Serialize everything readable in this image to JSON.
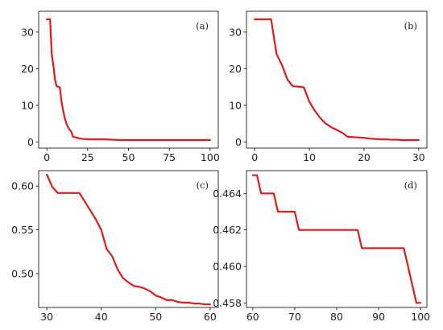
{
  "chart_data": [
    {
      "type": "line",
      "label": "(a)",
      "xlim": [
        -5,
        105
      ],
      "ylim": [
        -1.7,
        35.7
      ],
      "xticks": [
        0,
        25,
        50,
        75,
        100
      ],
      "yticks": [
        0,
        10,
        20,
        30
      ],
      "color": "#e31a1c",
      "series": [
        {
          "x": [
            0,
            1,
            2,
            3,
            4,
            5,
            6,
            7,
            8,
            9,
            10,
            11,
            12,
            13,
            14,
            15,
            16,
            17,
            18,
            19,
            20,
            25,
            30,
            35,
            40,
            45,
            50,
            60,
            70,
            80,
            90,
            100
          ],
          "y": [
            33.5,
            33.5,
            33.5,
            24,
            21,
            17,
            15.2,
            15.1,
            14.9,
            11,
            8.5,
            6.5,
            5,
            4,
            3.3,
            2.8,
            1.4,
            1.3,
            1.2,
            1.1,
            0.9,
            0.7,
            0.7,
            0.7,
            0.6,
            0.5,
            0.5,
            0.5,
            0.5,
            0.5,
            0.5,
            0.5
          ]
        }
      ]
    },
    {
      "type": "line",
      "label": "(b)",
      "xlim": [
        -1.5,
        31.5
      ],
      "ylim": [
        -1.7,
        35.7
      ],
      "xticks": [
        0,
        10,
        20,
        30
      ],
      "yticks": [
        0,
        10,
        20,
        30
      ],
      "color": "#e31a1c",
      "series": [
        {
          "x": [
            0,
            1,
            2,
            3,
            4,
            5,
            6,
            7,
            8,
            9,
            10,
            11,
            12,
            13,
            14,
            15,
            16,
            17,
            18,
            19,
            20,
            21,
            22,
            23,
            24,
            25,
            26,
            27,
            28,
            29,
            30
          ],
          "y": [
            33.5,
            33.5,
            33.5,
            33.5,
            24,
            21,
            17,
            15.2,
            15.1,
            14.9,
            11,
            8.5,
            6.5,
            5,
            4,
            3.3,
            2.5,
            1.4,
            1.3,
            1.2,
            1.1,
            0.9,
            0.8,
            0.7,
            0.7,
            0.6,
            0.6,
            0.5,
            0.5,
            0.5,
            0.5
          ]
        }
      ]
    },
    {
      "type": "line",
      "label": "(c)",
      "xlim": [
        28.5,
        61.5
      ],
      "ylim": [
        0.4615,
        0.6175
      ],
      "xticks": [
        30,
        40,
        50,
        60
      ],
      "yticks": [
        0.5,
        0.55,
        0.6
      ],
      "yticklabels": [
        "0.50",
        "0.55",
        "0.60"
      ],
      "color": "#e31a1c",
      "series": [
        {
          "x": [
            30,
            31,
            32,
            33,
            34,
            35,
            36,
            37,
            38,
            39,
            40,
            41,
            42,
            43,
            44,
            45,
            46,
            47,
            48,
            49,
            50,
            51,
            52,
            53,
            54,
            55,
            56,
            57,
            58,
            59,
            60
          ],
          "y": [
            0.613,
            0.599,
            0.592,
            0.592,
            0.592,
            0.592,
            0.592,
            0.582,
            0.572,
            0.562,
            0.55,
            0.528,
            0.52,
            0.505,
            0.495,
            0.49,
            0.486,
            0.485,
            0.483,
            0.48,
            0.475,
            0.473,
            0.47,
            0.47,
            0.468,
            0.467,
            0.467,
            0.466,
            0.466,
            0.465,
            0.465
          ]
        }
      ]
    },
    {
      "type": "line",
      "label": "(d)",
      "xlim": [
        58.5,
        101.5
      ],
      "ylim": [
        0.45775,
        0.46525
      ],
      "xticks": [
        60,
        70,
        80,
        90,
        100
      ],
      "yticks": [
        0.458,
        0.46,
        0.462,
        0.464
      ],
      "yticklabels": [
        "0.458",
        "0.460",
        "0.462",
        "0.464"
      ],
      "color": "#e31a1c",
      "series": [
        {
          "x": [
            60,
            61,
            62,
            63,
            64,
            65,
            66,
            67,
            68,
            69,
            70,
            71,
            72,
            73,
            74,
            75,
            76,
            77,
            78,
            79,
            80,
            81,
            82,
            83,
            84,
            85,
            86,
            87,
            88,
            89,
            90,
            91,
            92,
            93,
            94,
            95,
            96,
            97,
            98,
            99,
            100
          ],
          "y": [
            0.465,
            0.465,
            0.464,
            0.464,
            0.464,
            0.464,
            0.463,
            0.463,
            0.463,
            0.463,
            0.463,
            0.462,
            0.462,
            0.462,
            0.462,
            0.462,
            0.462,
            0.462,
            0.462,
            0.462,
            0.462,
            0.462,
            0.462,
            0.462,
            0.462,
            0.462,
            0.461,
            0.461,
            0.461,
            0.461,
            0.461,
            0.461,
            0.461,
            0.461,
            0.461,
            0.461,
            0.461,
            0.46,
            0.459,
            0.458,
            0.458
          ]
        }
      ]
    }
  ]
}
